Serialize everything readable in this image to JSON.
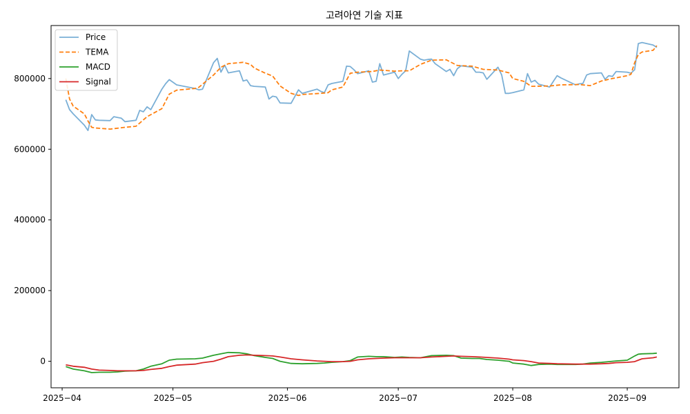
{
  "chart_data": {
    "type": "line",
    "title": "고려아연 기술 지표",
    "xlabel": "",
    "ylabel": "",
    "ylim": [
      -75000,
      950000
    ],
    "xlim": [
      "2025-03-29",
      "2025-09-15"
    ],
    "grid": false,
    "legend_position": "top-left",
    "x_ticks": [
      "2025-04-01",
      "2025-05-01",
      "2025-06-01",
      "2025-07-01",
      "2025-08-01",
      "2025-09-01"
    ],
    "x_tick_labels": [
      "2025−04",
      "2025−05",
      "2025−06",
      "2025−07",
      "2025−08",
      "2025−09"
    ],
    "y_ticks": [
      0,
      200000,
      400000,
      600000,
      800000
    ],
    "y_tick_labels": [
      "0",
      "200000",
      "400000",
      "600000",
      "800000"
    ],
    "series": [
      {
        "name": "Price",
        "color": "#7aafd6",
        "style": "solid",
        "x": [
          "2025-04-02",
          "2025-04-03",
          "2025-04-04",
          "2025-04-07",
          "2025-04-08",
          "2025-04-09",
          "2025-04-10",
          "2025-04-11",
          "2025-04-14",
          "2025-04-15",
          "2025-04-16",
          "2025-04-17",
          "2025-04-18",
          "2025-04-21",
          "2025-04-22",
          "2025-04-23",
          "2025-04-24",
          "2025-04-25",
          "2025-04-28",
          "2025-04-29",
          "2025-04-30",
          "2025-05-02",
          "2025-05-07",
          "2025-05-08",
          "2025-05-09",
          "2025-05-12",
          "2025-05-13",
          "2025-05-14",
          "2025-05-15",
          "2025-05-16",
          "2025-05-19",
          "2025-05-20",
          "2025-05-21",
          "2025-05-22",
          "2025-05-23",
          "2025-05-26",
          "2025-05-27",
          "2025-05-28",
          "2025-05-29",
          "2025-05-30",
          "2025-06-02",
          "2025-06-04",
          "2025-06-05",
          "2025-06-09",
          "2025-06-10",
          "2025-06-11",
          "2025-06-12",
          "2025-06-13",
          "2025-06-16",
          "2025-06-17",
          "2025-06-18",
          "2025-06-19",
          "2025-06-20",
          "2025-06-23",
          "2025-06-24",
          "2025-06-25",
          "2025-06-26",
          "2025-06-27",
          "2025-06-30",
          "2025-07-01",
          "2025-07-02",
          "2025-07-03",
          "2025-07-04",
          "2025-07-07",
          "2025-07-08",
          "2025-07-09",
          "2025-07-10",
          "2025-07-11",
          "2025-07-14",
          "2025-07-15",
          "2025-07-16",
          "2025-07-17",
          "2025-07-18",
          "2025-07-21",
          "2025-07-22",
          "2025-07-23",
          "2025-07-24",
          "2025-07-25",
          "2025-07-28",
          "2025-07-29",
          "2025-07-30",
          "2025-07-31",
          "2025-08-01",
          "2025-08-04",
          "2025-08-05",
          "2025-08-06",
          "2025-08-07",
          "2025-08-08",
          "2025-08-11",
          "2025-08-12",
          "2025-08-13",
          "2025-08-14",
          "2025-08-18",
          "2025-08-19",
          "2025-08-20",
          "2025-08-21",
          "2025-08-22",
          "2025-08-25",
          "2025-08-26",
          "2025-08-27",
          "2025-08-28",
          "2025-08-29",
          "2025-09-01",
          "2025-09-02",
          "2025-09-03",
          "2025-09-04",
          "2025-09-05",
          "2025-09-08",
          "2025-09-09"
        ],
        "y": [
          740000,
          712000,
          700000,
          668000,
          653000,
          698000,
          683000,
          682000,
          681000,
          692000,
          690000,
          688000,
          678000,
          682000,
          710000,
          706000,
          720000,
          712000,
          770000,
          785000,
          797000,
          782000,
          772000,
          768000,
          770000,
          845000,
          857000,
          818000,
          838000,
          816000,
          822000,
          793000,
          796000,
          780000,
          778000,
          776000,
          742000,
          750000,
          748000,
          731000,
          730000,
          768000,
          758000,
          770000,
          764000,
          760000,
          782000,
          786000,
          792000,
          835000,
          834000,
          825000,
          814000,
          822000,
          790000,
          792000,
          842000,
          810000,
          818000,
          800000,
          812000,
          822000,
          878000,
          855000,
          852000,
          854000,
          855000,
          842000,
          820000,
          826000,
          808000,
          828000,
          836000,
          832000,
          818000,
          818000,
          816000,
          798000,
          832000,
          810000,
          758000,
          758000,
          760000,
          768000,
          814000,
          790000,
          795000,
          784000,
          776000,
          792000,
          808000,
          802000,
          782000,
          785000,
          786000,
          810000,
          814000,
          816000,
          798000,
          808000,
          806000,
          820000,
          818000,
          815000,
          825000,
          899000,
          902000,
          895000,
          888000
        ],
        "note": ""
      },
      {
        "name": "TEMA",
        "color": "#ff7f0e",
        "style": "dashed",
        "x": [
          "2025-04-02",
          "2025-04-03",
          "2025-04-04",
          "2025-04-07",
          "2025-04-08",
          "2025-04-09",
          "2025-04-10",
          "2025-04-14",
          "2025-04-18",
          "2025-04-21",
          "2025-04-24",
          "2025-04-28",
          "2025-04-30",
          "2025-05-02",
          "2025-05-07",
          "2025-05-08",
          "2025-05-12",
          "2025-05-14",
          "2025-05-16",
          "2025-05-20",
          "2025-05-22",
          "2025-05-23",
          "2025-05-26",
          "2025-05-28",
          "2025-05-30",
          "2025-06-02",
          "2025-06-04",
          "2025-06-05",
          "2025-06-10",
          "2025-06-12",
          "2025-06-13",
          "2025-06-16",
          "2025-06-18",
          "2025-06-20",
          "2025-06-24",
          "2025-06-26",
          "2025-06-30",
          "2025-07-02",
          "2025-07-04",
          "2025-07-07",
          "2025-07-10",
          "2025-07-14",
          "2025-07-17",
          "2025-07-21",
          "2025-07-24",
          "2025-07-28",
          "2025-07-31",
          "2025-08-01",
          "2025-08-04",
          "2025-08-06",
          "2025-08-11",
          "2025-08-14",
          "2025-08-19",
          "2025-08-22",
          "2025-08-25",
          "2025-08-28",
          "2025-09-01",
          "2025-09-02",
          "2025-09-03",
          "2025-09-04",
          "2025-09-05",
          "2025-09-08",
          "2025-09-09"
        ],
        "y": [
          800000,
          742000,
          722000,
          700000,
          680000,
          662000,
          660000,
          657000,
          662000,
          665000,
          692000,
          715000,
          756000,
          767000,
          772000,
          775000,
          810000,
          832000,
          842000,
          846000,
          840000,
          830000,
          815000,
          807000,
          779000,
          758000,
          752000,
          755000,
          758000,
          760000,
          768000,
          776000,
          815000,
          818000,
          820000,
          824000,
          821000,
          822000,
          822000,
          840000,
          852000,
          853000,
          837000,
          835000,
          826000,
          824000,
          816000,
          800000,
          792000,
          778000,
          779000,
          782000,
          783000,
          780000,
          793000,
          800000,
          808000,
          812000,
          845000,
          868000,
          875000,
          880000,
          893000
        ],
        "note": ""
      },
      {
        "name": "MACD",
        "color": "#2ca02c",
        "style": "solid",
        "x": [
          "2025-04-02",
          "2025-04-04",
          "2025-04-07",
          "2025-04-09",
          "2025-04-11",
          "2025-04-14",
          "2025-04-16",
          "2025-04-18",
          "2025-04-21",
          "2025-04-23",
          "2025-04-25",
          "2025-04-28",
          "2025-04-30",
          "2025-05-02",
          "2025-05-07",
          "2025-05-09",
          "2025-05-12",
          "2025-05-14",
          "2025-05-16",
          "2025-05-19",
          "2025-05-21",
          "2025-05-23",
          "2025-05-26",
          "2025-05-28",
          "2025-05-30",
          "2025-06-02",
          "2025-06-05",
          "2025-06-09",
          "2025-06-11",
          "2025-06-13",
          "2025-06-16",
          "2025-06-18",
          "2025-06-20",
          "2025-06-23",
          "2025-06-25",
          "2025-06-27",
          "2025-06-30",
          "2025-07-02",
          "2025-07-04",
          "2025-07-07",
          "2025-07-10",
          "2025-07-14",
          "2025-07-16",
          "2025-07-18",
          "2025-07-21",
          "2025-07-23",
          "2025-07-25",
          "2025-07-28",
          "2025-07-30",
          "2025-07-31",
          "2025-08-01",
          "2025-08-04",
          "2025-08-06",
          "2025-08-08",
          "2025-08-11",
          "2025-08-13",
          "2025-08-18",
          "2025-08-20",
          "2025-08-22",
          "2025-08-25",
          "2025-08-27",
          "2025-08-29",
          "2025-09-01",
          "2025-09-03",
          "2025-09-04",
          "2025-09-05",
          "2025-09-08",
          "2025-09-09"
        ],
        "y": [
          -15000,
          -22000,
          -27000,
          -32000,
          -31000,
          -31000,
          -30000,
          -28000,
          -27000,
          -22000,
          -14000,
          -7000,
          3000,
          6000,
          7000,
          9000,
          17000,
          21000,
          25000,
          24000,
          21000,
          16000,
          11000,
          8000,
          0,
          -6000,
          -7000,
          -6000,
          -5000,
          -3000,
          -1000,
          2000,
          12000,
          14000,
          13000,
          13000,
          11000,
          12000,
          11000,
          10000,
          16000,
          17000,
          16000,
          9000,
          8000,
          8000,
          5000,
          3000,
          1000,
          0,
          -5000,
          -8000,
          -12000,
          -9000,
          -8000,
          -9000,
          -9000,
          -8000,
          -5000,
          -3000,
          -1000,
          1000,
          3000,
          15000,
          20000,
          21000,
          22000,
          23000
        ],
        "note": ""
      },
      {
        "name": "Signal",
        "color": "#d62728",
        "style": "solid",
        "x": [
          "2025-04-02",
          "2025-04-04",
          "2025-04-07",
          "2025-04-09",
          "2025-04-11",
          "2025-04-14",
          "2025-04-16",
          "2025-04-18",
          "2025-04-21",
          "2025-04-23",
          "2025-04-25",
          "2025-04-28",
          "2025-04-30",
          "2025-05-02",
          "2025-05-07",
          "2025-05-09",
          "2025-05-12",
          "2025-05-14",
          "2025-05-16",
          "2025-05-19",
          "2025-05-21",
          "2025-05-23",
          "2025-05-26",
          "2025-05-28",
          "2025-05-30",
          "2025-06-02",
          "2025-06-05",
          "2025-06-09",
          "2025-06-11",
          "2025-06-13",
          "2025-06-16",
          "2025-06-18",
          "2025-06-20",
          "2025-06-23",
          "2025-06-25",
          "2025-06-27",
          "2025-06-30",
          "2025-07-02",
          "2025-07-04",
          "2025-07-07",
          "2025-07-10",
          "2025-07-14",
          "2025-07-16",
          "2025-07-18",
          "2025-07-21",
          "2025-07-23",
          "2025-07-25",
          "2025-07-28",
          "2025-07-30",
          "2025-07-31",
          "2025-08-01",
          "2025-08-04",
          "2025-08-06",
          "2025-08-08",
          "2025-08-11",
          "2025-08-13",
          "2025-08-18",
          "2025-08-20",
          "2025-08-22",
          "2025-08-25",
          "2025-08-27",
          "2025-08-29",
          "2025-09-01",
          "2025-09-03",
          "2025-09-04",
          "2025-09-05",
          "2025-09-08",
          "2025-09-09"
        ],
        "y": [
          -10000,
          -14000,
          -17000,
          -22000,
          -25000,
          -26000,
          -27000,
          -27000,
          -27000,
          -26000,
          -23000,
          -20000,
          -15000,
          -11000,
          -8000,
          -4000,
          0,
          6000,
          13000,
          17000,
          18000,
          17000,
          16000,
          15000,
          12000,
          7000,
          4000,
          1000,
          0,
          -1000,
          -1000,
          0,
          4000,
          7000,
          8000,
          9000,
          10000,
          10000,
          10000,
          10000,
          12000,
          14000,
          15000,
          14000,
          13000,
          12000,
          11000,
          9000,
          7000,
          6000,
          4000,
          2000,
          -1000,
          -5000,
          -6000,
          -7000,
          -8000,
          -8000,
          -8000,
          -7000,
          -6000,
          -4000,
          -3000,
          -1000,
          3000,
          7000,
          10000,
          12000
        ],
        "note": ""
      }
    ]
  }
}
